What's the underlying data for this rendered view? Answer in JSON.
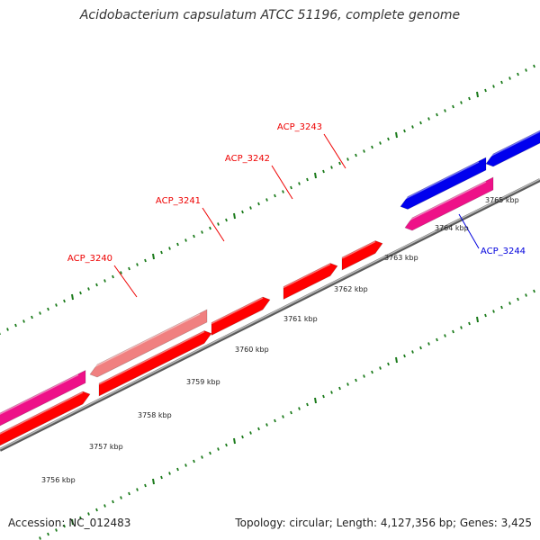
{
  "title": "Acidobacterium capsulatum ATCC 51196, complete genome",
  "footer": {
    "accession": "Accession: NC_012483",
    "summary": "Topology: circular; Length: 4,127,356 bp; Genes: 3,425"
  },
  "colors": {
    "backbone": "#8a8a8a",
    "tick": "#1a7a1a",
    "forward_gene": "#ff0000",
    "forward_gene_light": "#f08080",
    "reverse_gene": "#0000ee",
    "reverse_gene_pink": "#ee1188",
    "label_forward": "#ee0000",
    "label_reverse": "#0000dd"
  },
  "scale": {
    "unit": "kbp",
    "tick_labels": [
      "3756 kbp",
      "3757 kbp",
      "3758 kbp",
      "3759 kbp",
      "3760 kbp",
      "3761 kbp",
      "3762 kbp",
      "3763 kbp",
      "3764 kbp",
      "3765 kbp"
    ]
  },
  "gene_labels": [
    {
      "text": "ACP_3240",
      "strand": "forward"
    },
    {
      "text": "ACP_3241",
      "strand": "forward"
    },
    {
      "text": "ACP_3242",
      "strand": "forward"
    },
    {
      "text": "ACP_3243",
      "strand": "forward"
    },
    {
      "text": "ACP_3244",
      "strand": "reverse"
    }
  ]
}
